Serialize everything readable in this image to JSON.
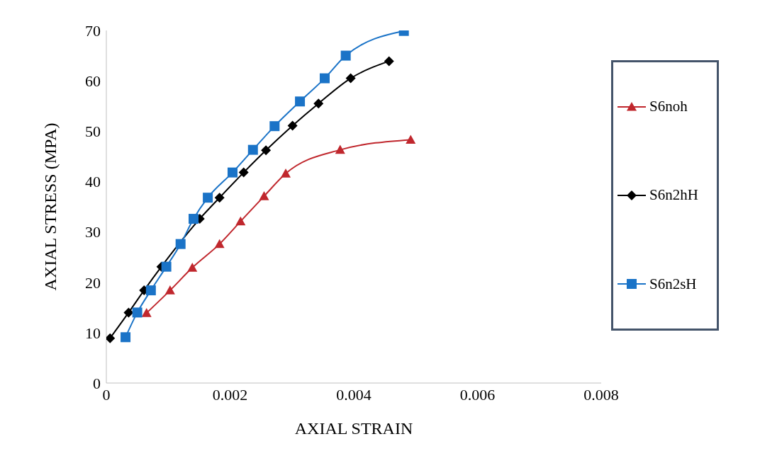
{
  "chart_data": {
    "type": "line",
    "xlabel": "AXIAL STRAIN",
    "ylabel": "AXIAL STRESS (MPA)",
    "xlim": [
      0,
      0.008
    ],
    "xticks": [
      0,
      0.002,
      0.004,
      0.006,
      0.008
    ],
    "ylim": [
      0,
      70
    ],
    "yticks": [
      0,
      10,
      20,
      30,
      40,
      50,
      60,
      70
    ],
    "legend": "right",
    "grid": false,
    "series": [
      {
        "name": "S6noh",
        "color": "#c0272d",
        "marker": "triangle",
        "x": [
          0.00065,
          0.00103,
          0.00139,
          0.00183,
          0.00217,
          0.00255,
          0.0029,
          0.00378,
          0.00492
        ],
        "values": [
          13.9,
          18.4,
          22.9,
          27.6,
          32.1,
          37.1,
          41.6,
          46.3,
          48.3
        ]
      },
      {
        "name": "S6n2hH",
        "color": "#000000",
        "marker": "diamond",
        "x": [
          6e-05,
          0.00036,
          0.00061,
          0.00089,
          0.00115,
          0.00151,
          0.00183,
          0.00222,
          0.00258,
          0.00301,
          0.00343,
          0.00395,
          0.00457
        ],
        "values": [
          8.9,
          14.0,
          18.4,
          23.1,
          null,
          32.6,
          36.8,
          41.8,
          46.2,
          51.1,
          55.5,
          60.5,
          63.9
        ]
      },
      {
        "name": "S6n2sH",
        "color": "#1a73c7",
        "marker": "square",
        "x": [
          0.00031,
          0.0005,
          0.00072,
          0.00097,
          0.0012,
          0.00141,
          0.00164,
          0.00204,
          0.00237,
          0.00272,
          0.00313,
          0.00353,
          0.00387,
          0.00481
        ],
        "values": [
          9.1,
          14.0,
          18.4,
          23.1,
          27.6,
          32.6,
          36.8,
          41.8,
          46.3,
          51.0,
          55.9,
          60.5,
          65.0,
          69.9
        ]
      }
    ]
  }
}
